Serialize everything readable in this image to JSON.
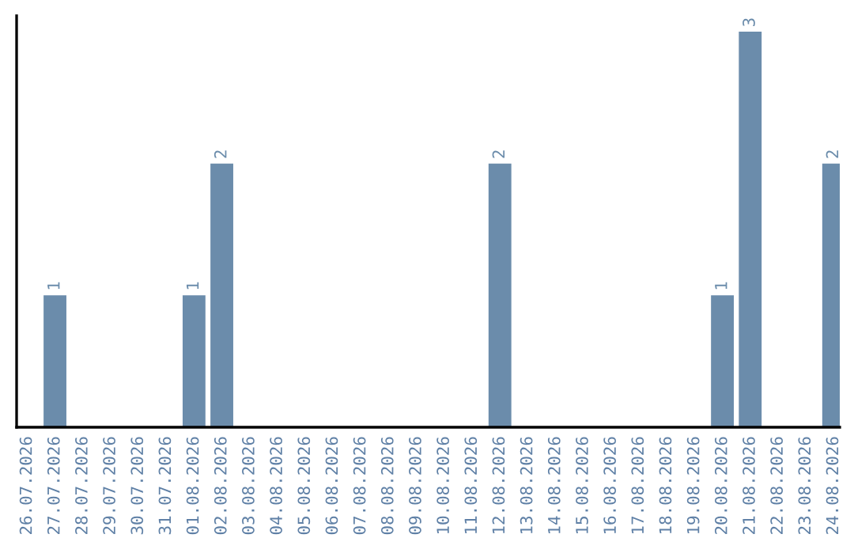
{
  "chart_data": {
    "type": "bar",
    "categories": [
      "26.07.2026",
      "27.07.2026",
      "28.07.2026",
      "29.07.2026",
      "30.07.2026",
      "31.07.2026",
      "01.08.2026",
      "02.08.2026",
      "03.08.2026",
      "04.08.2026",
      "05.08.2026",
      "06.08.2026",
      "07.08.2026",
      "08.08.2026",
      "09.08.2026",
      "10.08.2026",
      "11.08.2026",
      "12.08.2026",
      "13.08.2026",
      "14.08.2026",
      "15.08.2026",
      "16.08.2026",
      "17.08.2026",
      "18.08.2026",
      "19.08.2026",
      "20.08.2026",
      "21.08.2026",
      "22.08.2026",
      "23.08.2026",
      "24.08.2026"
    ],
    "values": [
      0,
      1,
      0,
      0,
      0,
      0,
      1,
      2,
      0,
      0,
      0,
      0,
      0,
      0,
      0,
      0,
      0,
      2,
      0,
      0,
      0,
      0,
      0,
      0,
      0,
      1,
      3,
      0,
      0,
      2
    ],
    "value_labels": [
      null,
      "1",
      null,
      null,
      null,
      null,
      "1",
      "2",
      null,
      null,
      null,
      null,
      null,
      null,
      null,
      null,
      null,
      "2",
      null,
      null,
      null,
      null,
      null,
      null,
      null,
      "1",
      "3",
      null,
      null,
      "2"
    ],
    "color": "#6b8cab",
    "ylim": [
      0,
      3.12
    ],
    "tick_labels": "x",
    "grid": false
  }
}
